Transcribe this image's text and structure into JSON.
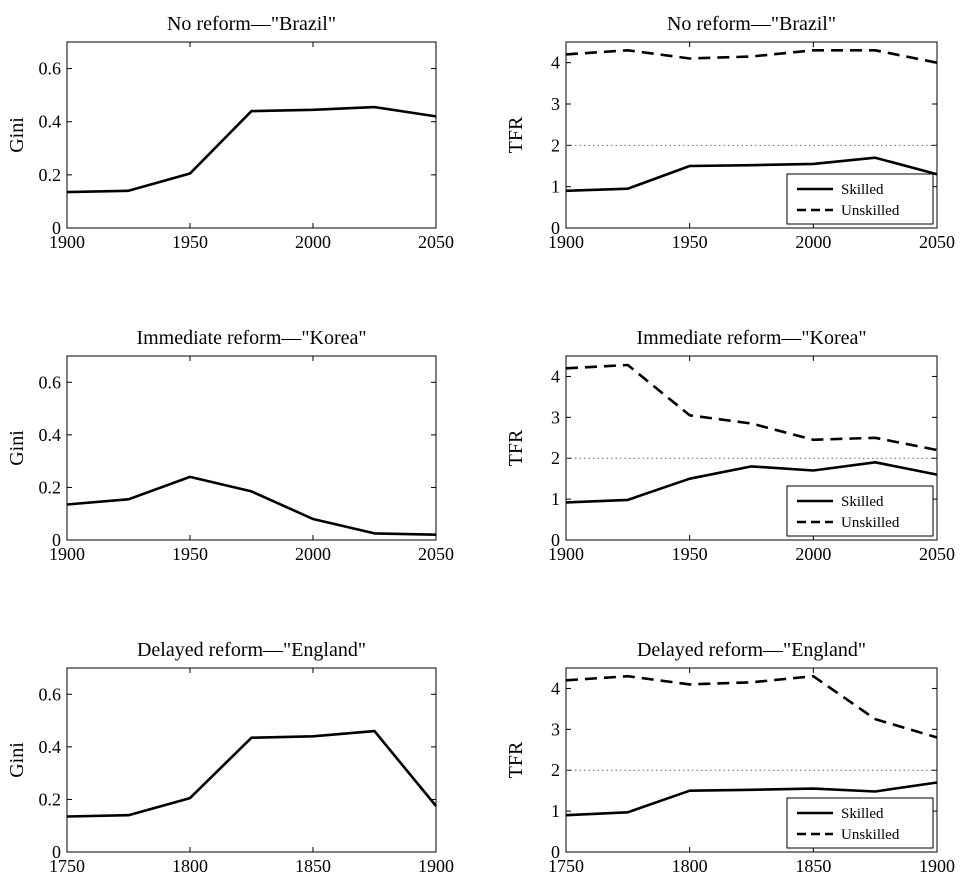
{
  "chart_data": [
    {
      "type": "line",
      "title": "No reform—\"Brazil\"",
      "xlabel": "",
      "ylabel": "Gini",
      "xlim": [
        1900,
        2050
      ],
      "ylim": [
        0,
        0.7
      ],
      "xticks": [
        1900,
        1950,
        2000,
        2050
      ],
      "yticks": [
        0,
        0.2,
        0.4,
        0.6
      ],
      "ytick_labels": [
        "0",
        "0.2",
        "0.4",
        "0.6"
      ],
      "series": [
        {
          "style": "solid",
          "x": [
            1900,
            1925,
            1950,
            1975,
            2000,
            2025,
            2050
          ],
          "y": [
            0.135,
            0.14,
            0.205,
            0.44,
            0.445,
            0.455,
            0.42
          ]
        }
      ]
    },
    {
      "type": "line",
      "title": "No reform—\"Brazil\"",
      "xlabel": "",
      "ylabel": "TFR",
      "xlim": [
        1900,
        2050
      ],
      "ylim": [
        0,
        4.5
      ],
      "xticks": [
        1900,
        1950,
        2000,
        2050
      ],
      "yticks": [
        0,
        1,
        2,
        3,
        4
      ],
      "ytick_labels": [
        "0",
        "1",
        "2",
        "3",
        "4"
      ],
      "reference_line": 2,
      "legend": "bottom-right",
      "series": [
        {
          "name": "Skilled",
          "style": "solid",
          "x": [
            1900,
            1925,
            1950,
            1975,
            2000,
            2025,
            2050
          ],
          "y": [
            0.9,
            0.95,
            1.5,
            1.52,
            1.55,
            1.7,
            1.3
          ]
        },
        {
          "name": "Unskilled",
          "style": "dashed",
          "x": [
            1900,
            1925,
            1950,
            1975,
            2000,
            2025,
            2050
          ],
          "y": [
            4.2,
            4.3,
            4.1,
            4.15,
            4.3,
            4.3,
            4.0
          ]
        }
      ]
    },
    {
      "type": "line",
      "title": "Immediate reform—\"Korea\"",
      "xlabel": "",
      "ylabel": "Gini",
      "xlim": [
        1900,
        2050
      ],
      "ylim": [
        0,
        0.7
      ],
      "xticks": [
        1900,
        1950,
        2000,
        2050
      ],
      "yticks": [
        0,
        0.2,
        0.4,
        0.6
      ],
      "ytick_labels": [
        "0",
        "0.2",
        "0.4",
        "0.6"
      ],
      "series": [
        {
          "style": "solid",
          "x": [
            1900,
            1925,
            1950,
            1975,
            2000,
            2025,
            2050
          ],
          "y": [
            0.135,
            0.155,
            0.24,
            0.185,
            0.08,
            0.025,
            0.02
          ]
        }
      ]
    },
    {
      "type": "line",
      "title": "Immediate reform—\"Korea\"",
      "xlabel": "",
      "ylabel": "TFR",
      "xlim": [
        1900,
        2050
      ],
      "ylim": [
        0,
        4.5
      ],
      "xticks": [
        1900,
        1950,
        2000,
        2050
      ],
      "yticks": [
        0,
        1,
        2,
        3,
        4
      ],
      "ytick_labels": [
        "0",
        "1",
        "2",
        "3",
        "4"
      ],
      "reference_line": 2,
      "legend": "bottom-right",
      "series": [
        {
          "name": "Skilled",
          "style": "solid",
          "x": [
            1900,
            1925,
            1950,
            1975,
            2000,
            2025,
            2050
          ],
          "y": [
            0.92,
            0.98,
            1.5,
            1.8,
            1.7,
            1.9,
            1.6
          ]
        },
        {
          "name": "Unskilled",
          "style": "dashed",
          "x": [
            1900,
            1925,
            1950,
            1975,
            2000,
            2025,
            2050
          ],
          "y": [
            4.2,
            4.28,
            3.05,
            2.85,
            2.45,
            2.5,
            2.2
          ]
        }
      ]
    },
    {
      "type": "line",
      "title": "Delayed reform—\"England\"",
      "xlabel": "",
      "ylabel": "Gini",
      "xlim": [
        1750,
        1900
      ],
      "ylim": [
        0,
        0.7
      ],
      "xticks": [
        1750,
        1800,
        1850,
        1900
      ],
      "yticks": [
        0,
        0.2,
        0.4,
        0.6
      ],
      "ytick_labels": [
        "0",
        "0.2",
        "0.4",
        "0.6"
      ],
      "series": [
        {
          "style": "solid",
          "x": [
            1750,
            1775,
            1800,
            1825,
            1850,
            1875,
            1900
          ],
          "y": [
            0.135,
            0.14,
            0.205,
            0.435,
            0.44,
            0.46,
            0.175
          ]
        }
      ]
    },
    {
      "type": "line",
      "title": "Delayed reform—\"England\"",
      "xlabel": "",
      "ylabel": "TFR",
      "xlim": [
        1750,
        1900
      ],
      "ylim": [
        0,
        4.5
      ],
      "xticks": [
        1750,
        1800,
        1850,
        1900
      ],
      "yticks": [
        0,
        1,
        2,
        3,
        4
      ],
      "ytick_labels": [
        "0",
        "1",
        "2",
        "3",
        "4"
      ],
      "reference_line": 2,
      "legend": "bottom-right",
      "series": [
        {
          "name": "Skilled",
          "style": "solid",
          "x": [
            1750,
            1775,
            1800,
            1825,
            1850,
            1875,
            1900
          ],
          "y": [
            0.9,
            0.97,
            1.5,
            1.52,
            1.55,
            1.48,
            1.7
          ]
        },
        {
          "name": "Unskilled",
          "style": "dashed",
          "x": [
            1750,
            1775,
            1800,
            1825,
            1850,
            1875,
            1900
          ],
          "y": [
            4.2,
            4.3,
            4.1,
            4.15,
            4.3,
            3.25,
            2.8
          ]
        }
      ]
    }
  ]
}
